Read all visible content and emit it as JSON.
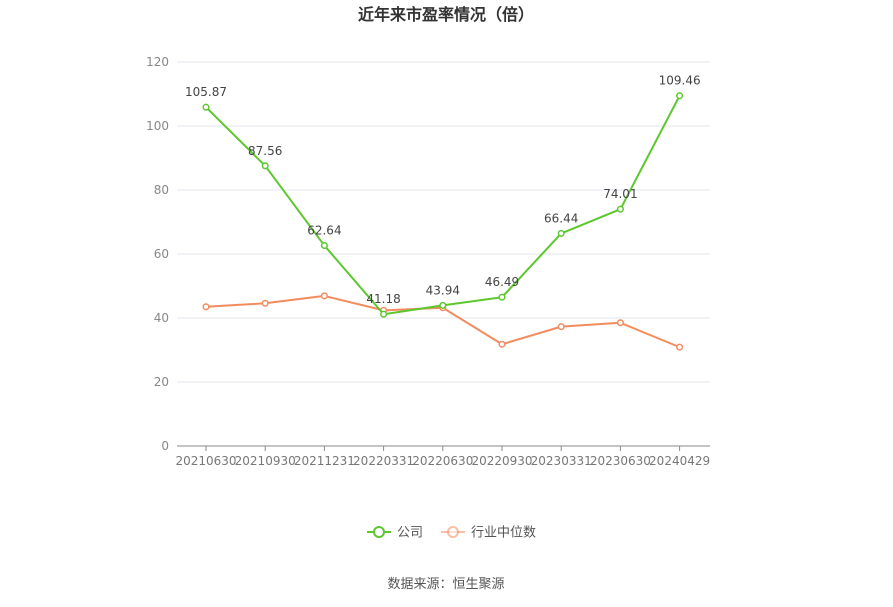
{
  "chart_data": {
    "type": "line",
    "title": "近年来市盈率情况（倍）",
    "categories": [
      "20210630",
      "20210930",
      "20211231",
      "20220331",
      "20220630",
      "20220930",
      "20230331",
      "20230630",
      "20240429"
    ],
    "ylim": [
      0,
      120
    ],
    "yticks": [
      0,
      20,
      40,
      60,
      80,
      100,
      120
    ],
    "grid": true,
    "legend_position": "bottom-center",
    "series": [
      {
        "name": "公司",
        "color": "#5cc72e",
        "values": [
          105.87,
          87.56,
          62.64,
          41.18,
          43.94,
          46.49,
          66.44,
          74.01,
          109.46
        ],
        "labels": [
          "105.87",
          "87.56",
          "62.64",
          "41.18",
          "43.94",
          "46.49",
          "66.44",
          "74.01",
          "109.46"
        ]
      },
      {
        "name": "行业中位数",
        "color": "#f28c5e",
        "values": [
          43.5,
          44.6,
          46.9,
          42.4,
          43.2,
          31.8,
          37.3,
          38.5,
          30.9
        ]
      }
    ],
    "source": "数据来源：恒生聚源"
  }
}
